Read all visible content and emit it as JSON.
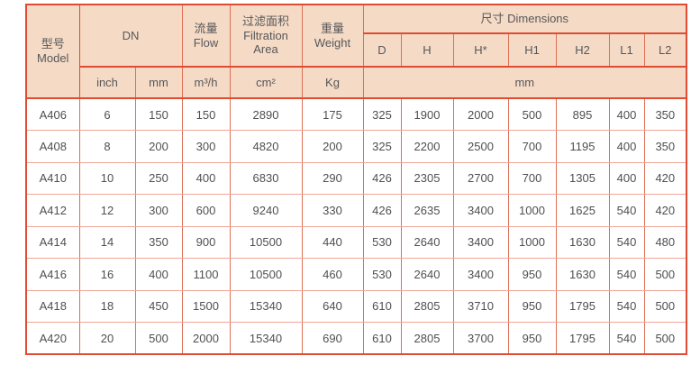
{
  "table": {
    "title_semantic": "filter-model-specification-table",
    "header": {
      "model": "型号\nModel",
      "dn": "DN",
      "flow": "流量\nFlow",
      "filtration": "过滤面积\nFiltration\nArea",
      "weight": "重量\nWeight",
      "dimensions": "尺寸 Dimensions",
      "dim_cols": [
        "D",
        "H",
        "H*",
        "H1",
        "H2",
        "L1",
        "L2"
      ],
      "units": {
        "inch": "inch",
        "mm": "mm",
        "flow": "m³/h",
        "area": "cm²",
        "weight": "Kg",
        "dims": "mm"
      }
    },
    "rows": [
      [
        "A406",
        "6",
        "150",
        "150",
        "2890",
        "175",
        "325",
        "1900",
        "2000",
        "500",
        "895",
        "400",
        "350"
      ],
      [
        "A408",
        "8",
        "200",
        "300",
        "4820",
        "200",
        "325",
        "2200",
        "2500",
        "700",
        "1195",
        "400",
        "350"
      ],
      [
        "A410",
        "10",
        "250",
        "400",
        "6830",
        "290",
        "426",
        "2305",
        "2700",
        "700",
        "1305",
        "400",
        "420"
      ],
      [
        "A412",
        "12",
        "300",
        "600",
        "9240",
        "330",
        "426",
        "2635",
        "3400",
        "1000",
        "1625",
        "540",
        "420"
      ],
      [
        "A414",
        "14",
        "350",
        "900",
        "10500",
        "440",
        "530",
        "2640",
        "3400",
        "1000",
        "1630",
        "540",
        "480"
      ],
      [
        "A416",
        "16",
        "400",
        "1100",
        "10500",
        "460",
        "530",
        "2640",
        "3400",
        "950",
        "1630",
        "540",
        "500"
      ],
      [
        "A418",
        "18",
        "450",
        "1500",
        "15340",
        "640",
        "610",
        "2805",
        "3710",
        "950",
        "1795",
        "540",
        "500"
      ],
      [
        "A420",
        "20",
        "500",
        "2000",
        "15340",
        "690",
        "610",
        "2805",
        "3700",
        "950",
        "1795",
        "540",
        "500"
      ]
    ],
    "colors": {
      "header_bg": "#f5dac6",
      "border_strong": "#df4b33",
      "border_mid": "#dd7056",
      "border_light": "#efa697",
      "text": "#57585a"
    }
  }
}
